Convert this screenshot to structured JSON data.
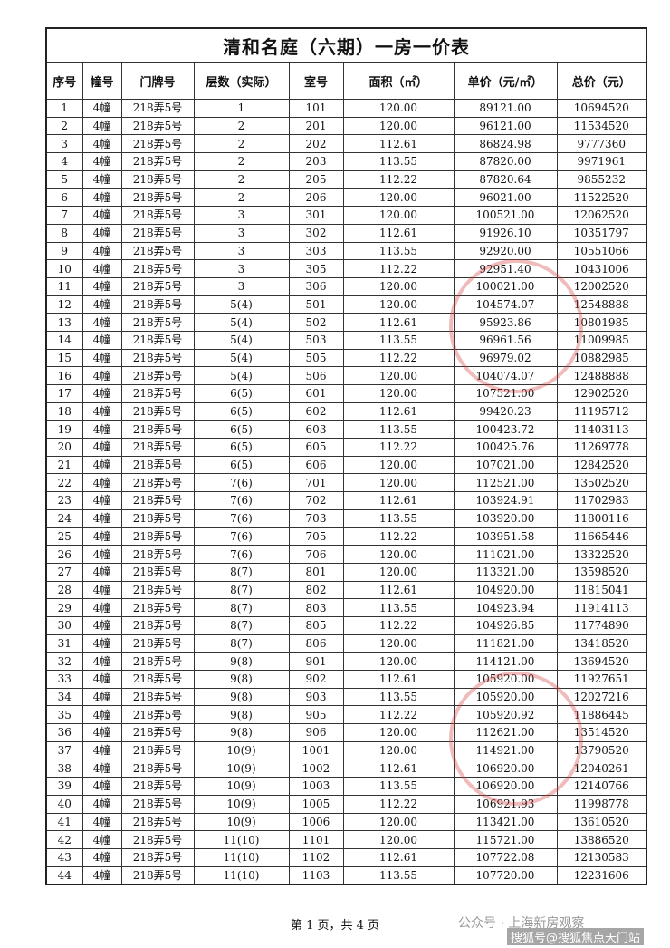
{
  "header": {
    "title": "清和名庭（六期）一房一价表"
  },
  "table": {
    "columns": [
      "序号",
      "幢号",
      "门牌号",
      "层数（实际）",
      "室号",
      "面积（㎡）",
      "单价（元/㎡）",
      "总价（元）"
    ],
    "rows": [
      [
        "1",
        "4幢",
        "218弄5号",
        "1",
        "101",
        "120.00",
        "89121.00",
        "10694520"
      ],
      [
        "2",
        "4幢",
        "218弄5号",
        "2",
        "201",
        "120.00",
        "96121.00",
        "11534520"
      ],
      [
        "3",
        "4幢",
        "218弄5号",
        "2",
        "202",
        "112.61",
        "86824.98",
        "9777360"
      ],
      [
        "4",
        "4幢",
        "218弄5号",
        "2",
        "203",
        "113.55",
        "87820.00",
        "9971961"
      ],
      [
        "5",
        "4幢",
        "218弄5号",
        "2",
        "205",
        "112.22",
        "87820.64",
        "9855232"
      ],
      [
        "6",
        "4幢",
        "218弄5号",
        "2",
        "206",
        "120.00",
        "96021.00",
        "11522520"
      ],
      [
        "7",
        "4幢",
        "218弄5号",
        "3",
        "301",
        "120.00",
        "100521.00",
        "12062520"
      ],
      [
        "8",
        "4幢",
        "218弄5号",
        "3",
        "302",
        "112.61",
        "91926.10",
        "10351797"
      ],
      [
        "9",
        "4幢",
        "218弄5号",
        "3",
        "303",
        "113.55",
        "92920.00",
        "10551066"
      ],
      [
        "10",
        "4幢",
        "218弄5号",
        "3",
        "305",
        "112.22",
        "92951.40",
        "10431006"
      ],
      [
        "11",
        "4幢",
        "218弄5号",
        "3",
        "306",
        "120.00",
        "100021.00",
        "12002520"
      ],
      [
        "12",
        "4幢",
        "218弄5号",
        "5(4)",
        "501",
        "120.00",
        "104574.07",
        "12548888"
      ],
      [
        "13",
        "4幢",
        "218弄5号",
        "5(4)",
        "502",
        "112.61",
        "95923.86",
        "10801985"
      ],
      [
        "14",
        "4幢",
        "218弄5号",
        "5(4)",
        "503",
        "113.55",
        "96961.56",
        "11009985"
      ],
      [
        "15",
        "4幢",
        "218弄5号",
        "5(4)",
        "505",
        "112.22",
        "96979.02",
        "10882985"
      ],
      [
        "16",
        "4幢",
        "218弄5号",
        "5(4)",
        "506",
        "120.00",
        "104074.07",
        "12488888"
      ],
      [
        "17",
        "4幢",
        "218弄5号",
        "6(5)",
        "601",
        "120.00",
        "107521.00",
        "12902520"
      ],
      [
        "18",
        "4幢",
        "218弄5号",
        "6(5)",
        "602",
        "112.61",
        "99420.23",
        "11195712"
      ],
      [
        "19",
        "4幢",
        "218弄5号",
        "6(5)",
        "603",
        "113.55",
        "100423.72",
        "11403113"
      ],
      [
        "20",
        "4幢",
        "218弄5号",
        "6(5)",
        "605",
        "112.22",
        "100425.76",
        "11269778"
      ],
      [
        "21",
        "4幢",
        "218弄5号",
        "6(5)",
        "606",
        "120.00",
        "107021.00",
        "12842520"
      ],
      [
        "22",
        "4幢",
        "218弄5号",
        "7(6)",
        "701",
        "120.00",
        "112521.00",
        "13502520"
      ],
      [
        "23",
        "4幢",
        "218弄5号",
        "7(6)",
        "702",
        "112.61",
        "103924.91",
        "11702983"
      ],
      [
        "24",
        "4幢",
        "218弄5号",
        "7(6)",
        "703",
        "113.55",
        "103920.00",
        "11800116"
      ],
      [
        "25",
        "4幢",
        "218弄5号",
        "7(6)",
        "705",
        "112.22",
        "103951.58",
        "11665446"
      ],
      [
        "26",
        "4幢",
        "218弄5号",
        "7(6)",
        "706",
        "120.00",
        "111021.00",
        "13322520"
      ],
      [
        "27",
        "4幢",
        "218弄5号",
        "8(7)",
        "801",
        "120.00",
        "113321.00",
        "13598520"
      ],
      [
        "28",
        "4幢",
        "218弄5号",
        "8(7)",
        "802",
        "112.61",
        "104920.00",
        "11815041"
      ],
      [
        "29",
        "4幢",
        "218弄5号",
        "8(7)",
        "803",
        "113.55",
        "104923.94",
        "11914113"
      ],
      [
        "30",
        "4幢",
        "218弄5号",
        "8(7)",
        "805",
        "112.22",
        "104926.85",
        "11774890"
      ],
      [
        "31",
        "4幢",
        "218弄5号",
        "8(7)",
        "806",
        "120.00",
        "111821.00",
        "13418520"
      ],
      [
        "32",
        "4幢",
        "218弄5号",
        "9(8)",
        "901",
        "120.00",
        "114121.00",
        "13694520"
      ],
      [
        "33",
        "4幢",
        "218弄5号",
        "9(8)",
        "902",
        "112.61",
        "105920.00",
        "11927651"
      ],
      [
        "34",
        "4幢",
        "218弄5号",
        "9(8)",
        "903",
        "113.55",
        "105920.00",
        "12027216"
      ],
      [
        "35",
        "4幢",
        "218弄5号",
        "9(8)",
        "905",
        "112.22",
        "105920.92",
        "11886445"
      ],
      [
        "36",
        "4幢",
        "218弄5号",
        "9(8)",
        "906",
        "120.00",
        "112621.00",
        "13514520"
      ],
      [
        "37",
        "4幢",
        "218弄5号",
        "10(9)",
        "1001",
        "120.00",
        "114921.00",
        "13790520"
      ],
      [
        "38",
        "4幢",
        "218弄5号",
        "10(9)",
        "1002",
        "112.61",
        "106920.00",
        "12040261"
      ],
      [
        "39",
        "4幢",
        "218弄5号",
        "10(9)",
        "1003",
        "113.55",
        "106920.00",
        "12140766"
      ],
      [
        "40",
        "4幢",
        "218弄5号",
        "10(9)",
        "1005",
        "112.22",
        "106921.93",
        "11998778"
      ],
      [
        "41",
        "4幢",
        "218弄5号",
        "10(9)",
        "1006",
        "120.00",
        "113421.00",
        "13610520"
      ],
      [
        "42",
        "4幢",
        "218弄5号",
        "11(10)",
        "1101",
        "120.00",
        "115721.00",
        "13886520"
      ],
      [
        "43",
        "4幢",
        "218弄5号",
        "11(10)",
        "1102",
        "112.61",
        "107722.08",
        "12130583"
      ],
      [
        "44",
        "4幢",
        "218弄5号",
        "11(10)",
        "1103",
        "113.55",
        "107720.00",
        "12231606"
      ]
    ]
  },
  "footer": {
    "page": "第 1 页，共 4 页",
    "watermark": "公众号 · 上海新房观察",
    "source": "搜狐号@搜狐焦点天门站"
  }
}
